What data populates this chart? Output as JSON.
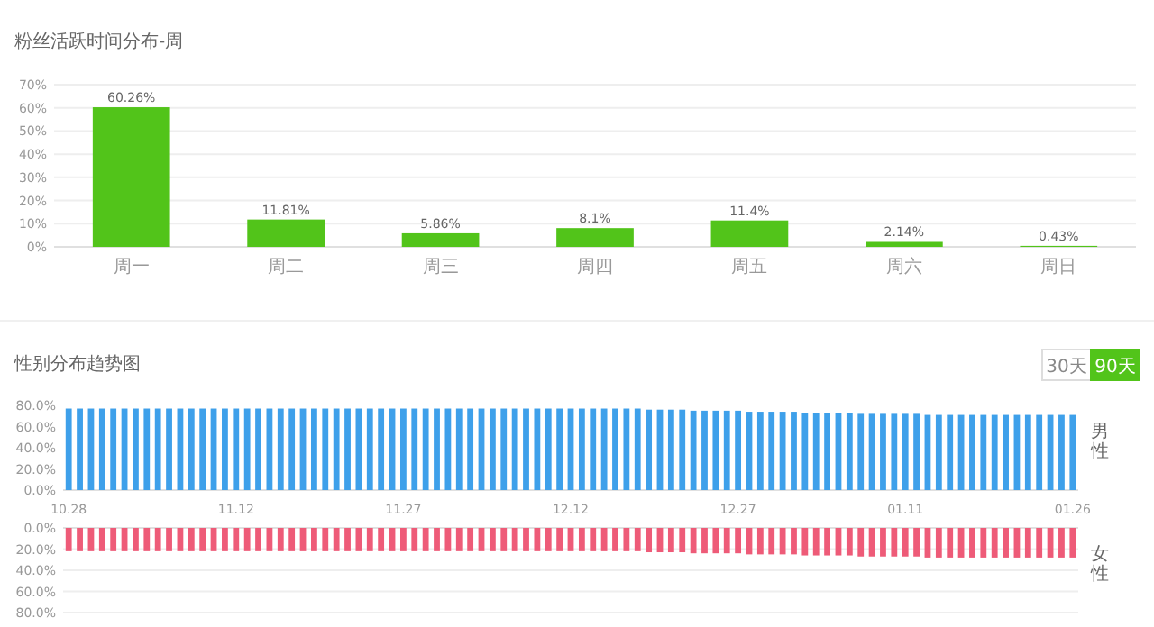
{
  "chart_data": [
    {
      "type": "bar",
      "title": "粉丝活跃时间分布-周",
      "categories": [
        "周一",
        "周二",
        "周三",
        "周四",
        "周五",
        "周六",
        "周日"
      ],
      "values": [
        60.26,
        11.81,
        5.86,
        8.1,
        11.4,
        2.14,
        0.43
      ],
      "value_labels": [
        "60.26%",
        "11.81%",
        "5.86%",
        "8.1%",
        "11.4%",
        "2.14%",
        "0.43%"
      ],
      "color": "#52c41a",
      "ylim": [
        0,
        70
      ],
      "yticks": [
        {
          "value": 0,
          "label": "0%"
        },
        {
          "value": 10,
          "label": "10%"
        },
        {
          "value": 20,
          "label": "20%"
        },
        {
          "value": 30,
          "label": "30%"
        },
        {
          "value": 40,
          "label": "40%"
        },
        {
          "value": 50,
          "label": "50%"
        },
        {
          "value": 60,
          "label": "60%"
        },
        {
          "value": 70,
          "label": "70%"
        }
      ],
      "grid": "y"
    },
    {
      "type": "bar",
      "title": "性别分布趋势图",
      "annotations": [
        "30天",
        "90天"
      ],
      "categories": [
        "10.28",
        null,
        null,
        null,
        null,
        null,
        null,
        null,
        null,
        null,
        null,
        null,
        null,
        null,
        null,
        "11.12",
        null,
        null,
        null,
        null,
        null,
        null,
        null,
        null,
        null,
        null,
        null,
        null,
        null,
        null,
        "11.27",
        null,
        null,
        null,
        null,
        null,
        null,
        null,
        null,
        null,
        null,
        null,
        null,
        null,
        null,
        "12.12",
        null,
        null,
        null,
        null,
        null,
        null,
        null,
        null,
        null,
        null,
        null,
        null,
        null,
        null,
        "12.27",
        null,
        null,
        null,
        null,
        null,
        null,
        null,
        null,
        null,
        null,
        null,
        null,
        null,
        null,
        "01.11",
        null,
        null,
        null,
        null,
        null,
        null,
        null,
        null,
        null,
        null,
        null,
        null,
        null,
        null,
        "01.26"
      ],
      "series": [
        {
          "name": "男性",
          "color": "#3ea0ea",
          "values": [
            77,
            77,
            77,
            77,
            77,
            77,
            77,
            77,
            77,
            77,
            77,
            77,
            77,
            77,
            77,
            77,
            77,
            77,
            77,
            77,
            77,
            77,
            77,
            77,
            77,
            77,
            77,
            77,
            77,
            77,
            77,
            77,
            77,
            77,
            77,
            77,
            77,
            77,
            77,
            77,
            77,
            77,
            77,
            77,
            77,
            77,
            77,
            77,
            77,
            77,
            77,
            77,
            76,
            76,
            76,
            76,
            75,
            75,
            75,
            75,
            75,
            74,
            74,
            74,
            74,
            74,
            73,
            73,
            73,
            73,
            73,
            72,
            72,
            72,
            72,
            72,
            72,
            71,
            71,
            71,
            71,
            71,
            71,
            71,
            71,
            71,
            71,
            71,
            71,
            71,
            71
          ]
        }
      ],
      "ylim": [
        0,
        80
      ],
      "yticks": [
        {
          "value": 0,
          "label": "0.0%"
        },
        {
          "value": 20,
          "label": "20.0%"
        },
        {
          "value": 40,
          "label": "40.0%"
        },
        {
          "value": 60,
          "label": "60.0%"
        },
        {
          "value": 80,
          "label": "80.0%"
        }
      ],
      "grid": false
    },
    {
      "type": "bar",
      "categories": [
        "10.28",
        null,
        null,
        null,
        null,
        null,
        null,
        null,
        null,
        null,
        null,
        null,
        null,
        null,
        null,
        "11.12",
        null,
        null,
        null,
        null,
        null,
        null,
        null,
        null,
        null,
        null,
        null,
        null,
        null,
        null,
        "11.27",
        null,
        null,
        null,
        null,
        null,
        null,
        null,
        null,
        null,
        null,
        null,
        null,
        null,
        null,
        "12.12",
        null,
        null,
        null,
        null,
        null,
        null,
        null,
        null,
        null,
        null,
        null,
        null,
        null,
        null,
        "12.27",
        null,
        null,
        null,
        null,
        null,
        null,
        null,
        null,
        null,
        null,
        null,
        null,
        null,
        null,
        "01.11",
        null,
        null,
        null,
        null,
        null,
        null,
        null,
        null,
        null,
        null,
        null,
        null,
        null,
        null,
        "01.26"
      ],
      "series": [
        {
          "name": "女性",
          "color": "#ee5b78",
          "values": [
            22,
            22,
            22,
            22,
            22,
            22,
            22,
            22,
            22,
            22,
            22,
            22,
            22,
            22,
            22,
            22,
            22,
            22,
            22,
            22,
            22,
            22,
            22,
            22,
            22,
            22,
            22,
            22,
            22,
            22,
            22,
            22,
            22,
            22,
            22,
            22,
            22,
            22,
            22,
            22,
            22,
            22,
            22,
            22,
            22,
            22,
            22,
            22,
            22,
            22,
            22,
            22,
            23,
            23,
            23,
            23,
            24,
            24,
            24,
            24,
            24,
            25,
            25,
            25,
            25,
            25,
            26,
            26,
            26,
            26,
            26,
            27,
            27,
            27,
            27,
            27,
            27,
            28,
            28,
            28,
            28,
            28,
            28,
            28,
            28,
            28,
            28,
            28,
            28,
            28,
            28
          ]
        }
      ],
      "ylim": [
        80,
        0
      ],
      "yticks": [
        {
          "value": 0,
          "label": "0.0%"
        },
        {
          "value": 20,
          "label": "20.0%"
        },
        {
          "value": 40,
          "label": "40.0%"
        },
        {
          "value": 60,
          "label": "60.0%"
        },
        {
          "value": 80,
          "label": "80.0%"
        }
      ],
      "grid": "y",
      "tick_labels": "y"
    }
  ]
}
